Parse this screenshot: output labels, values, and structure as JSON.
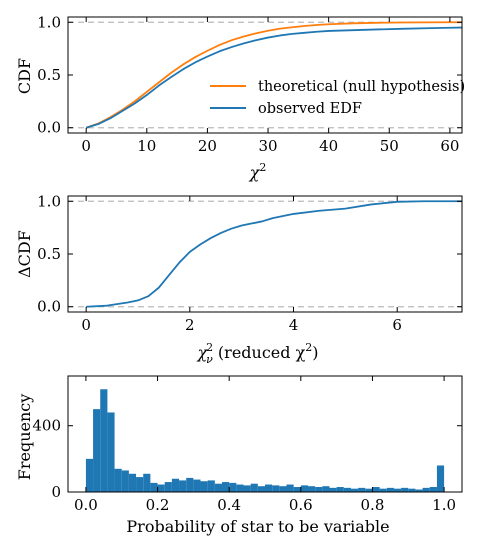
{
  "colors": {
    "theoretical": "#ff7f0e",
    "observed": "#1f77b4",
    "reference": "#bbbbbb",
    "bars": "#1f77b4"
  },
  "chart_data": [
    {
      "type": "line",
      "xlabel": "χ",
      "xlabel_sup": "2",
      "ylabel": "CDF",
      "xlim": [
        -3,
        62
      ],
      "ylim": [
        -0.05,
        1.05
      ],
      "xticks": [
        0,
        10,
        20,
        30,
        40,
        50,
        60
      ],
      "yticks": [
        0.0,
        0.5,
        1.0
      ],
      "ytick_labels": [
        "0.0",
        "0.5",
        "1.0"
      ],
      "reference_lines": [
        0.0,
        1.0
      ],
      "legend_position": "lower-right",
      "series": [
        {
          "name": "theoretical (null hypothesis)",
          "color": "#ff7f0e",
          "x": [
            0,
            2,
            4,
            6,
            8,
            10,
            12,
            14,
            16,
            18,
            20,
            22,
            24,
            26,
            28,
            30,
            32,
            34,
            36,
            38,
            40,
            44,
            48,
            52,
            56,
            60,
            62
          ],
          "y": [
            0.0,
            0.04,
            0.1,
            0.17,
            0.25,
            0.34,
            0.43,
            0.52,
            0.6,
            0.67,
            0.73,
            0.785,
            0.83,
            0.865,
            0.895,
            0.92,
            0.94,
            0.953,
            0.965,
            0.974,
            0.981,
            0.99,
            0.995,
            0.998,
            0.999,
            1.0,
            1.0
          ]
        },
        {
          "name": "observed EDF",
          "color": "#1f77b4",
          "x": [
            0,
            2,
            4,
            6,
            8,
            10,
            12,
            14,
            16,
            18,
            20,
            22,
            24,
            26,
            28,
            30,
            32,
            34,
            36,
            38,
            40,
            44,
            48,
            52,
            56,
            60,
            62
          ],
          "y": [
            0.0,
            0.035,
            0.09,
            0.16,
            0.23,
            0.31,
            0.4,
            0.48,
            0.555,
            0.62,
            0.675,
            0.725,
            0.765,
            0.8,
            0.83,
            0.855,
            0.875,
            0.89,
            0.9,
            0.91,
            0.918,
            0.925,
            0.932,
            0.938,
            0.943,
            0.948,
            0.95
          ]
        }
      ]
    },
    {
      "type": "line",
      "xlabel": "χ",
      "xlabel_sup": "2",
      "xlabel_sub": "ν",
      "xlabel_rest": " (reduced χ",
      "xlabel_rest_sup": "2",
      "xlabel_end": ")",
      "ylabel": "ΔCDF",
      "xlim": [
        -0.35,
        7.25
      ],
      "ylim": [
        -0.05,
        1.05
      ],
      "xticks": [
        0,
        2,
        4,
        6
      ],
      "yticks": [
        0.0,
        0.5,
        1.0
      ],
      "ytick_labels": [
        "0.0",
        "0.5",
        "1.0"
      ],
      "reference_lines": [
        0.0,
        1.0
      ],
      "series": [
        {
          "color": "#1f77b4",
          "x": [
            0,
            0.4,
            0.8,
            1.0,
            1.2,
            1.4,
            1.6,
            1.8,
            2.0,
            2.2,
            2.4,
            2.6,
            2.8,
            3.0,
            3.2,
            3.4,
            3.6,
            3.8,
            4.0,
            4.5,
            5.0,
            5.5,
            6.0,
            6.5,
            7.25
          ],
          "y": [
            0.0,
            0.01,
            0.04,
            0.06,
            0.1,
            0.18,
            0.3,
            0.42,
            0.52,
            0.59,
            0.65,
            0.7,
            0.74,
            0.77,
            0.79,
            0.81,
            0.84,
            0.86,
            0.88,
            0.91,
            0.93,
            0.97,
            0.995,
            1.0,
            1.0
          ]
        }
      ]
    },
    {
      "type": "bar",
      "xlabel": "Probability of star to be variable",
      "ylabel": "Frequency",
      "xlim": [
        -0.05,
        1.05
      ],
      "ylim": [
        0,
        700
      ],
      "xticks": [
        0.0,
        0.2,
        0.4,
        0.6,
        0.8,
        1.0
      ],
      "xtick_labels": [
        "0.0",
        "0.2",
        "0.4",
        "0.6",
        "0.8",
        "1.0"
      ],
      "yticks": [
        0,
        400
      ],
      "ytick_labels": [
        "0",
        "400"
      ],
      "bin_width": 0.02,
      "bin_starts": [
        0.0,
        0.02,
        0.04,
        0.06,
        0.08,
        0.1,
        0.12,
        0.14,
        0.16,
        0.18,
        0.2,
        0.22,
        0.24,
        0.26,
        0.28,
        0.3,
        0.32,
        0.34,
        0.36,
        0.38,
        0.4,
        0.42,
        0.44,
        0.46,
        0.48,
        0.5,
        0.52,
        0.54,
        0.56,
        0.58,
        0.6,
        0.62,
        0.64,
        0.66,
        0.68,
        0.7,
        0.72,
        0.74,
        0.76,
        0.78,
        0.8,
        0.82,
        0.84,
        0.86,
        0.88,
        0.9,
        0.92,
        0.94,
        0.96,
        0.98
      ],
      "values": [
        200,
        500,
        620,
        480,
        140,
        130,
        110,
        90,
        110,
        55,
        45,
        60,
        80,
        70,
        85,
        75,
        65,
        70,
        50,
        60,
        55,
        45,
        40,
        50,
        35,
        45,
        40,
        35,
        45,
        30,
        40,
        35,
        30,
        35,
        25,
        30,
        25,
        20,
        25,
        20,
        30,
        20,
        25,
        20,
        25,
        20,
        15,
        25,
        30,
        160
      ]
    }
  ]
}
